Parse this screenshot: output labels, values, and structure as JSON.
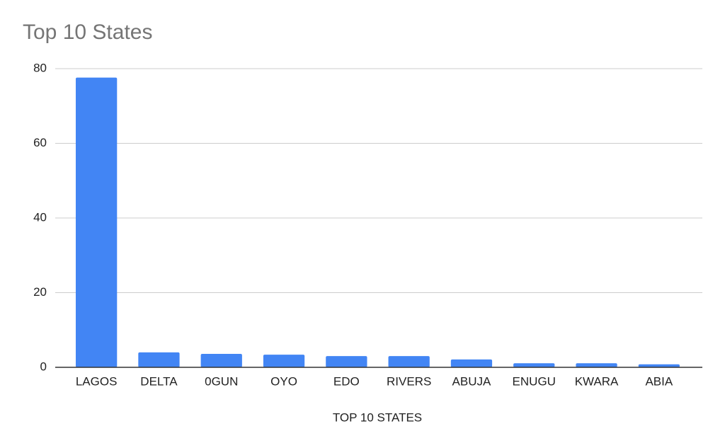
{
  "chart_data": {
    "type": "bar",
    "title": "Top 10 States",
    "x_label": "TOP 10 STATES",
    "categories": [
      "LAGOS",
      "DELTA",
      "0GUN",
      "OYO",
      "EDO",
      "RIVERS",
      "ABUJA",
      "ENUGU",
      "KWARA",
      "ABIA"
    ],
    "values": [
      77.6,
      4.0,
      3.6,
      3.4,
      3.0,
      3.0,
      2.1,
      1.1,
      1.1,
      0.8
    ],
    "color": "#4285f4",
    "ylim": [
      0,
      80
    ],
    "yticks": [
      0,
      20,
      40,
      60,
      80
    ],
    "grid": true
  }
}
